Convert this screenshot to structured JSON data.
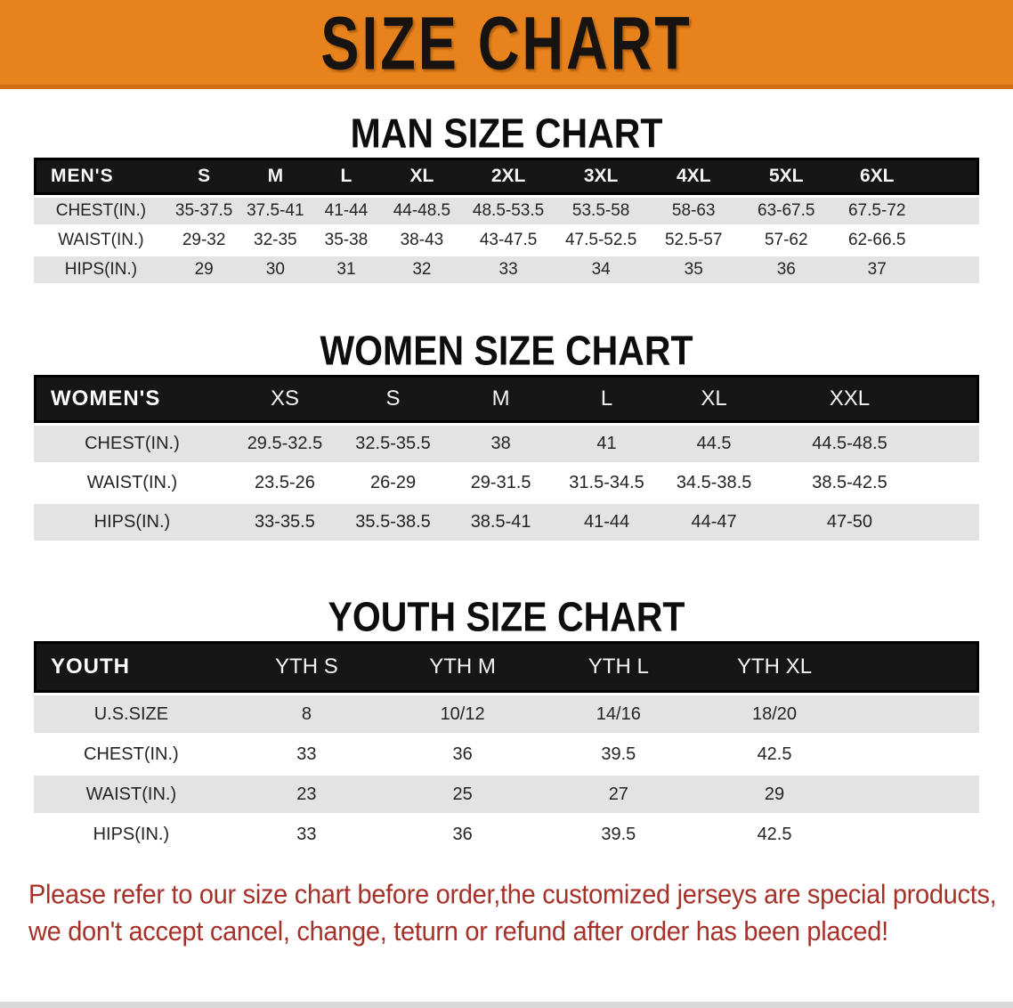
{
  "banner": {
    "title": "SIZE CHART",
    "bg_color": "#e8821c"
  },
  "sections": [
    {
      "heading": "MAN SIZE CHART",
      "table": {
        "header": [
          "MEN'S",
          "S",
          "M",
          "L",
          "XL",
          "2XL",
          "3XL",
          "4XL",
          "5XL",
          "6XL"
        ],
        "rows": [
          [
            "CHEST(IN.)",
            "35-37.5",
            "37.5-41",
            "41-44",
            "44-48.5",
            "48.5-53.5",
            "53.5-58",
            "58-63",
            "63-67.5",
            "67.5-72"
          ],
          [
            "WAIST(IN.)",
            "29-32",
            "32-35",
            "35-38",
            "38-43",
            "43-47.5",
            "47.5-52.5",
            "52.5-57",
            "57-62",
            "62-66.5"
          ],
          [
            "HIPS(IN.)",
            "29",
            "30",
            "31",
            "32",
            "33",
            "34",
            "35",
            "36",
            "37"
          ]
        ]
      }
    },
    {
      "heading": "WOMEN SIZE CHART",
      "table": {
        "header": [
          "WOMEN'S",
          "XS",
          "S",
          "M",
          "L",
          "XL",
          "XXL"
        ],
        "rows": [
          [
            "CHEST(IN.)",
            "29.5-32.5",
            "32.5-35.5",
            "38",
            "41",
            "44.5",
            "44.5-48.5"
          ],
          [
            "WAIST(IN.)",
            "23.5-26",
            "26-29",
            "29-31.5",
            "31.5-34.5",
            "34.5-38.5",
            "38.5-42.5"
          ],
          [
            "HIPS(IN.)",
            "33-35.5",
            "35.5-38.5",
            "38.5-41",
            "41-44",
            "44-47",
            "47-50"
          ]
        ]
      }
    },
    {
      "heading": "YOUTH SIZE CHART",
      "table": {
        "header": [
          "YOUTH",
          "YTH S",
          "YTH M",
          "YTH L",
          "YTH XL"
        ],
        "rows": [
          [
            "U.S.SIZE",
            "8",
            "10/12",
            "14/16",
            "18/20"
          ],
          [
            "CHEST(IN.)",
            "33",
            "36",
            "39.5",
            "42.5"
          ],
          [
            "WAIST(IN.)",
            "23",
            "25",
            "27",
            "29"
          ],
          [
            "HIPS(IN.)",
            "33",
            "36",
            "39.5",
            "42.5"
          ]
        ]
      }
    }
  ],
  "disclaimer": {
    "lines": [
      "Please refer to our size chart before order,the customized jerseys are special products,",
      "we don't accept cancel, change, teturn or refund after order has been placed!"
    ],
    "color": "#a63129"
  }
}
